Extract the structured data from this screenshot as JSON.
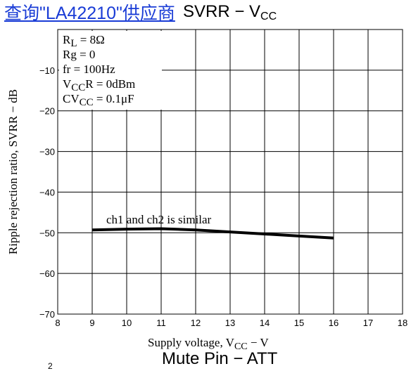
{
  "header": {
    "supplier_link": "查询\"LA42210\"供应商",
    "title_main": "SVRR − V",
    "title_sub": "CC"
  },
  "footer": {
    "next_title": "Mute Pin − ATT",
    "corner_mark": "2"
  },
  "conditions": [
    {
      "main": "R",
      "sub": "L",
      "rest": " = 8Ω"
    },
    {
      "main": "Rg = 0",
      "sub": "",
      "rest": ""
    },
    {
      "main": "fr = 100Hz",
      "sub": "",
      "rest": ""
    },
    {
      "main": "V",
      "sub": "CC",
      "rest": "R = 0dBm"
    },
    {
      "main": "CV",
      "sub": "CC",
      "rest": " = 0.1μF"
    }
  ],
  "chart_data": {
    "type": "line",
    "xlabel": {
      "main": "Supply voltage, V",
      "sub": "CC",
      "rest": " − V"
    },
    "ylabel": "Ripple rejection ratio, SVRR − dB",
    "xlim": [
      8,
      18
    ],
    "ylim": [
      -70,
      0
    ],
    "x_ticks": [
      "8",
      "9",
      "10",
      "11",
      "12",
      "13",
      "14",
      "15",
      "16",
      "17",
      "18"
    ],
    "y_ticks": [
      "−10",
      "−20",
      "−30",
      "−40",
      "−50",
      "−60",
      "−70"
    ],
    "grid": true,
    "annotation": "ch1 and ch2 is similar",
    "series": [
      {
        "x": [
          9,
          10,
          11,
          12,
          13,
          14,
          15,
          16
        ],
        "y": [
          -49.3,
          -49.1,
          -49.0,
          -49.3,
          -49.8,
          -50.3,
          -50.8,
          -51.3
        ]
      }
    ],
    "colors": {
      "line": "#000000",
      "grid": "#000000"
    }
  }
}
